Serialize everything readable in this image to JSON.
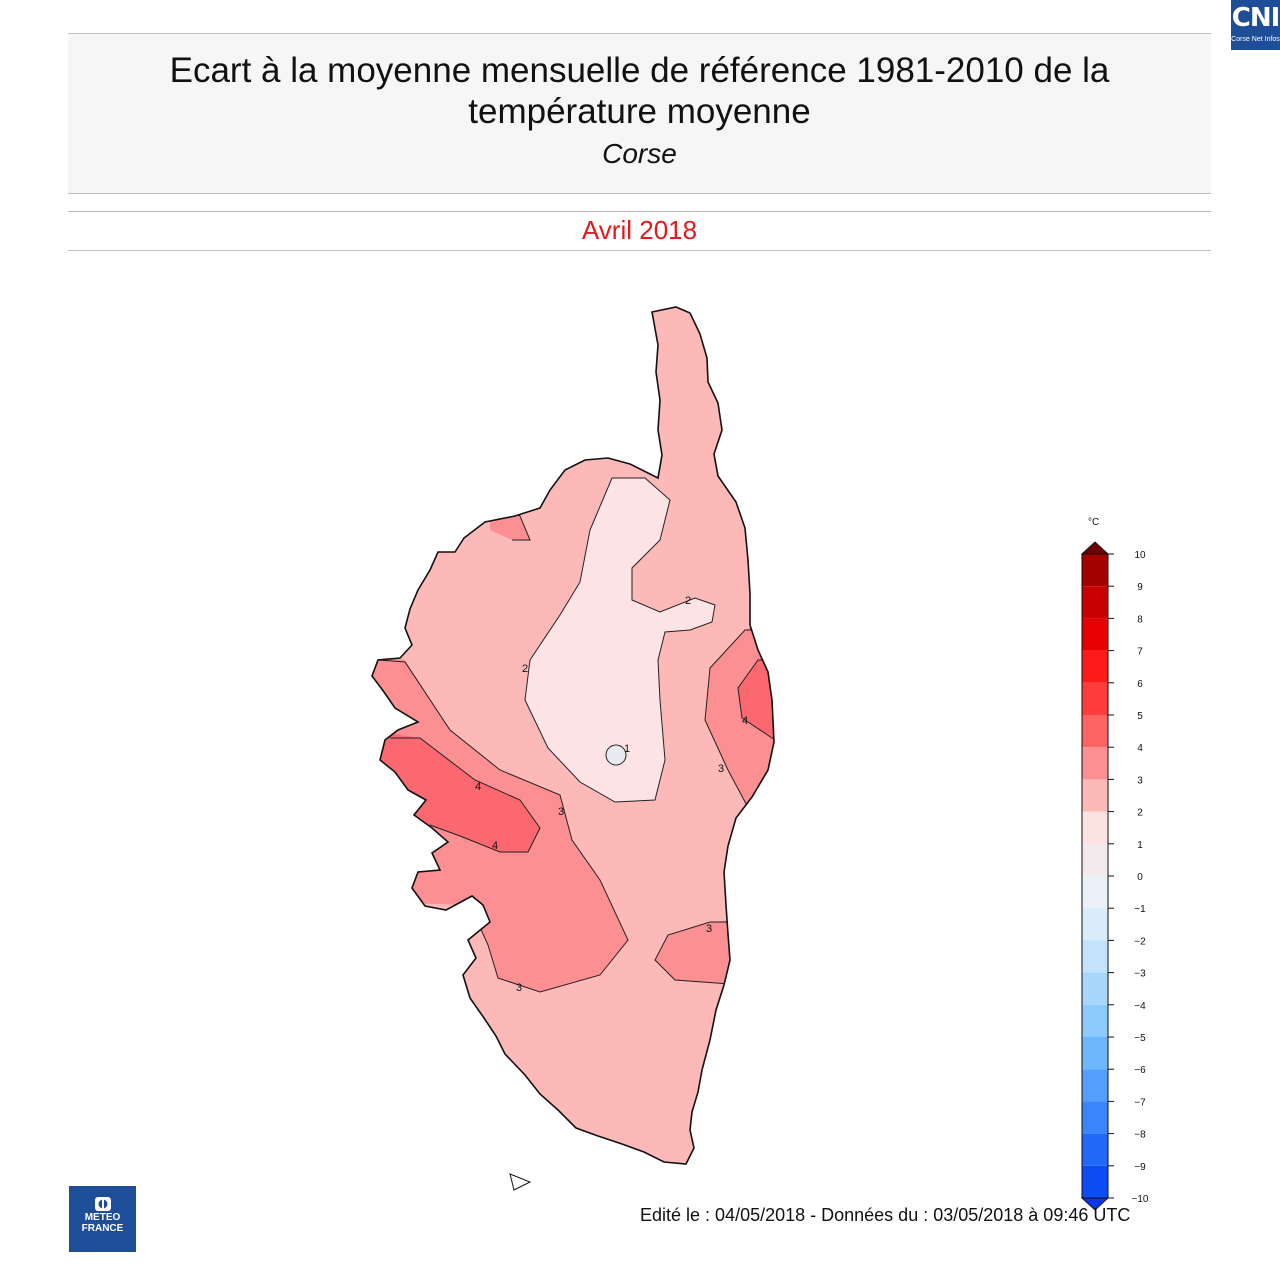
{
  "header": {
    "title": "Ecart à la moyenne mensuelle de référence 1981-2010 de la température moyenne",
    "region": "Corse",
    "period": "Avril 2018",
    "period_color": "#e31a1c"
  },
  "badge": {
    "short": "CNI",
    "long": "Corse Net Infos"
  },
  "map": {
    "contour_labels": [
      "2",
      "2",
      "1",
      "3",
      "4",
      "4",
      "3",
      "4",
      "3",
      "3"
    ]
  },
  "legend": {
    "unit": "°C",
    "ticks": [
      "10",
      "9",
      "8",
      "7",
      "6",
      "5",
      "4",
      "3",
      "2",
      "1",
      "0",
      "−1",
      "−2",
      "−3",
      "−4",
      "−5",
      "−6",
      "−7",
      "−8",
      "−9",
      "−10"
    ],
    "colors": [
      "#6b0000",
      "#a40000",
      "#c80000",
      "#e60000",
      "#ff1a1a",
      "#ff3c3c",
      "#ff6464",
      "#fc8f92",
      "#fdb8b8",
      "#fde2e2",
      "#f3eaee",
      "#eaf1f8",
      "#d8ecfb",
      "#c2e3fb",
      "#a8d7fb",
      "#8ccbfc",
      "#6fb7fc",
      "#52a0fb",
      "#3886fa",
      "#2068f8",
      "#0c4cf5",
      "#0a38e8"
    ]
  },
  "footer": {
    "org_line1": "METEO",
    "org_line2": "FRANCE",
    "edition": "Edité le : 04/05/2018 - Données du : 03/05/2018 à 09:46 UTC"
  }
}
